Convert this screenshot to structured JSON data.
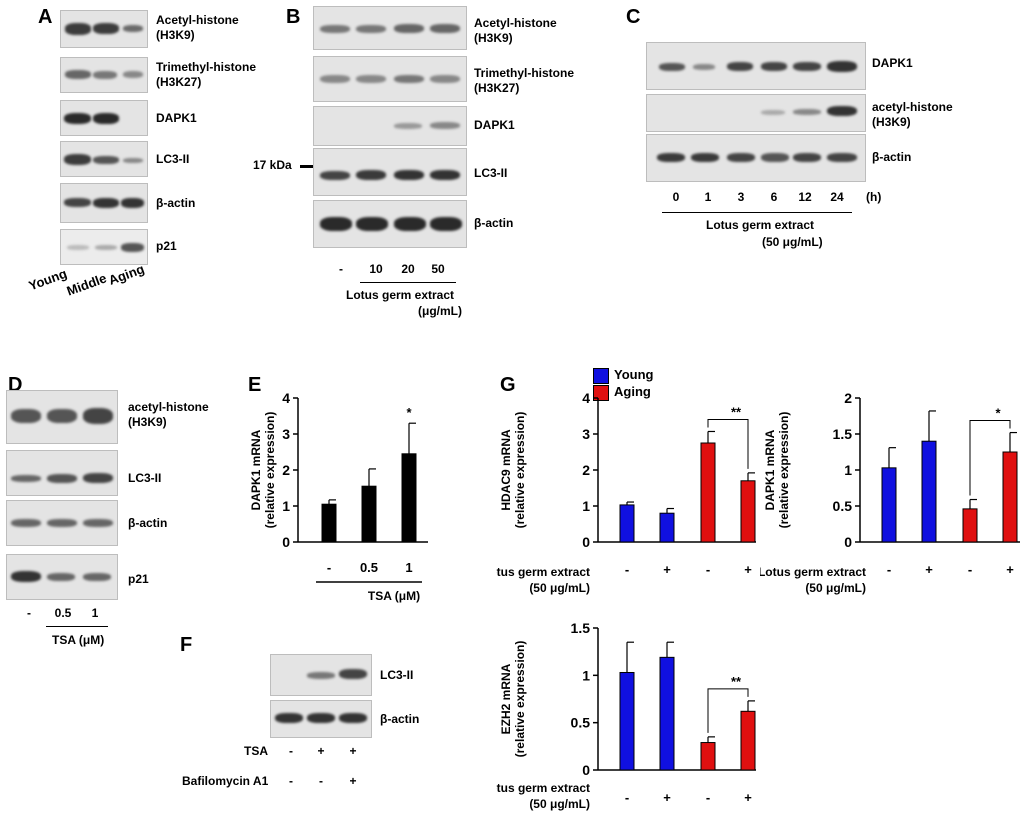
{
  "panel_a": {
    "label": "A",
    "rows": [
      "Acetyl-histone\n(H3K9)",
      "Trimethyl-histone\n(H3K27)",
      "DAPK1",
      "LC3-II",
      "β-actin",
      "p21"
    ],
    "lanes": [
      "Young",
      "Middle",
      "Aging"
    ]
  },
  "panel_b": {
    "label": "B",
    "rows": [
      "Acetyl-histone\n(H3K9)",
      "Trimethyl-histone\n(H3K27)",
      "DAPK1",
      "LC3-II",
      "β-actin"
    ],
    "marker": "17 kDa",
    "lanes": [
      "-",
      "10",
      "20",
      "50"
    ],
    "treatment": "Lotus germ extract",
    "unit": "(μg/mL)"
  },
  "panel_c": {
    "label": "C",
    "rows": [
      "DAPK1",
      "acetyl-histone\n(H3K9)",
      "β-actin"
    ],
    "lanes": [
      "0",
      "1",
      "3",
      "6",
      "12",
      "24"
    ],
    "unit_h": "(h)",
    "treatment": "Lotus germ extract",
    "conc": "(50 μg/mL)"
  },
  "panel_d": {
    "label": "D",
    "rows": [
      "acetyl-histone\n(H3K9)",
      "LC3-II",
      "β-actin",
      "p21"
    ],
    "lanes": [
      "-",
      "0.5",
      "1"
    ],
    "treatment": "TSA (μM)"
  },
  "panel_e": {
    "label": "E",
    "treatment": "TSA (μM)"
  },
  "panel_f": {
    "label": "F",
    "rows": [
      "LC3-II",
      "β-actin"
    ],
    "row_tsa": "TSA",
    "row_baf": "Bafilomycin A1",
    "tsa_signs": [
      "-",
      "+",
      "+"
    ],
    "baf_signs": [
      "-",
      "-",
      "+"
    ]
  },
  "panel_g": {
    "label": "G",
    "legend": [
      "Young",
      "Aging"
    ],
    "xrow1": "Lotus germ extract",
    "xrow2": "(50 μg/mL)"
  },
  "colors": {
    "young": "#1010e0",
    "aging": "#e01010",
    "black": "#000000"
  },
  "chart_data": [
    {
      "id": "E",
      "type": "bar",
      "categories": [
        "-",
        "0.5",
        "1"
      ],
      "values": [
        1.05,
        1.55,
        2.45
      ],
      "errors": [
        0.12,
        0.48,
        0.85
      ],
      "significance": [
        "",
        "",
        "*"
      ],
      "ylabel": "DAPK1 mRNA\n(relative expression)",
      "xlabel": "TSA (μM)",
      "ylim": [
        0,
        4
      ],
      "yticks": [
        "0",
        "1",
        "2",
        "3",
        "4"
      ]
    },
    {
      "id": "G-HDAC9",
      "type": "bar",
      "categories": [
        "-",
        "+",
        "-",
        "+"
      ],
      "groups": [
        "Young",
        "Young",
        "Aging",
        "Aging"
      ],
      "values": [
        1.03,
        0.8,
        2.75,
        1.7
      ],
      "errors": [
        0.08,
        0.13,
        0.32,
        0.22
      ],
      "bracket": {
        "from": 2,
        "to": 3,
        "label": "**"
      },
      "ylabel": "HDAC9  mRNA\n(relative expression)",
      "ylim": [
        0,
        4
      ],
      "yticks": [
        "0",
        "1",
        "2",
        "3",
        "4"
      ]
    },
    {
      "id": "G-DAPK1",
      "type": "bar",
      "categories": [
        "-",
        "+",
        "-",
        "+"
      ],
      "groups": [
        "Young",
        "Young",
        "Aging",
        "Aging"
      ],
      "values": [
        1.03,
        1.4,
        0.46,
        1.25
      ],
      "errors": [
        0.28,
        0.42,
        0.13,
        0.27
      ],
      "bracket": {
        "from": 2,
        "to": 3,
        "label": "*"
      },
      "ylabel": "DAPK1  mRNA\n(relative expression)",
      "ylim": [
        0,
        2
      ],
      "yticks": [
        "0",
        "0.5",
        "1",
        "1.5",
        "2"
      ]
    },
    {
      "id": "G-EZH2",
      "type": "bar",
      "categories": [
        "-",
        "+",
        "-",
        "+"
      ],
      "groups": [
        "Young",
        "Young",
        "Aging",
        "Aging"
      ],
      "values": [
        1.03,
        1.19,
        0.29,
        0.62
      ],
      "errors": [
        0.32,
        0.16,
        0.06,
        0.11
      ],
      "bracket": {
        "from": 2,
        "to": 3,
        "label": "**"
      },
      "ylabel": "EZH2 mRNA\n(relative expression)",
      "ylim": [
        0,
        1.5
      ],
      "yticks": [
        "0",
        "0.5",
        "1",
        "1.5"
      ]
    }
  ]
}
